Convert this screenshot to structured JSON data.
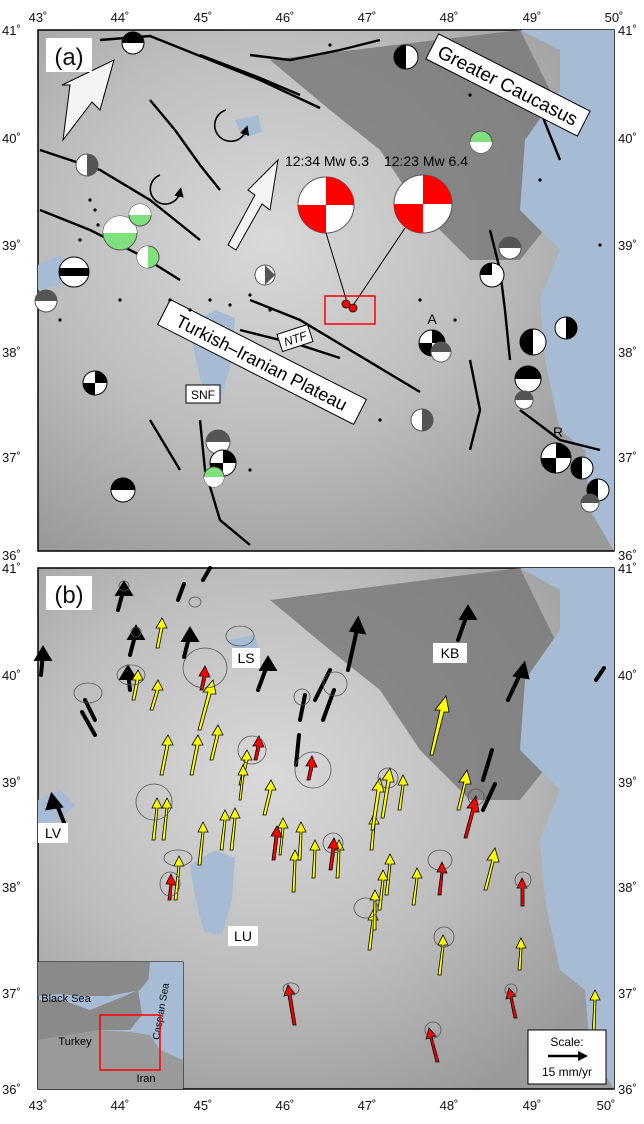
{
  "panels": {
    "a": {
      "label": "(a)",
      "regions": [
        "Greater Caucasus",
        "Turkish–Iranian Plateau"
      ],
      "faults": [
        "NTF",
        "SNF"
      ],
      "events": [
        {
          "time": "12:34",
          "mag": "Mw 6.3",
          "text": "12:34 Mw 6.3"
        },
        {
          "time": "12:23",
          "mag": "Mw 6.4",
          "text": "12:23 Mw 6.4"
        }
      ],
      "stations": [
        "A",
        "R"
      ],
      "colors": {
        "event": "#ff0000",
        "historic": "#000000",
        "green": "#7ee17e",
        "gray": "#777777"
      }
    },
    "b": {
      "label": "(b)",
      "places": [
        "LS",
        "KB",
        "LV",
        "LU"
      ],
      "scale": {
        "title": "Scale:",
        "value": "15 mm/yr"
      },
      "arrow_colors": {
        "black": "#000000",
        "yellow": "#ffff00",
        "red": "#ff0000"
      },
      "inset": {
        "labels": [
          "Black Sea",
          "Caspian Sea",
          "Turkey",
          "Iran"
        ]
      }
    }
  },
  "axes": {
    "lon_labels": [
      "43˚",
      "44˚",
      "45˚",
      "46˚",
      "47˚",
      "48˚",
      "49˚",
      "50˚"
    ],
    "lat_labels_a": [
      "41˚",
      "40˚",
      "39˚",
      "38˚",
      "37˚",
      "36˚"
    ],
    "lat_labels_b": [
      "41˚",
      "40˚",
      "39˚",
      "38˚",
      "37˚",
      "36˚"
    ]
  }
}
